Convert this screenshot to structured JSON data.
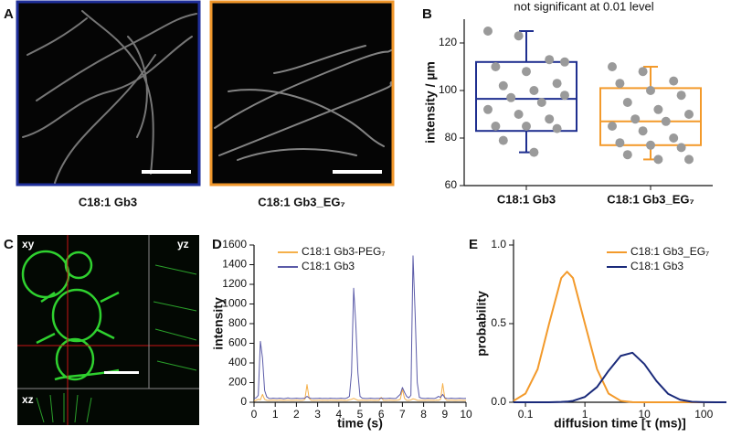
{
  "images": [
    {
      "panel_label": "A",
      "captions": [
        "C18:1 Gb3",
        "C18:1 Gb3_EG₇"
      ]
    },
    {
      "panel_label": "C",
      "view_labels": [
        "xy",
        "yz",
        "xz"
      ]
    }
  ],
  "chart_data": [
    {
      "type": "box",
      "panel_label": "B",
      "title": "not significant at 0.01 level",
      "y_label": "intensity / µm",
      "categories": [
        "C18:1 Gb3",
        "C18:1 Gb3_EG₇"
      ],
      "boxes": [
        {
          "whisker_low": 74,
          "q1": 83,
          "median": 96.5,
          "q3": 112,
          "whisker_high": 125,
          "color": "#1f2f8f",
          "points": [
            125,
            123,
            113,
            110,
            108,
            103,
            102,
            100,
            98,
            97,
            95,
            92,
            90,
            88,
            85,
            85,
            84,
            79,
            74,
            112
          ]
        },
        {
          "whisker_low": 71,
          "q1": 77,
          "median": 87,
          "q3": 101,
          "whisker_high": 110,
          "color": "#f39a2b",
          "points": [
            110,
            108,
            104,
            103,
            100,
            98,
            95,
            92,
            90,
            88,
            87,
            85,
            83,
            80,
            78,
            77,
            76,
            73,
            71,
            71
          ]
        }
      ],
      "point_color": "#9a9a9a",
      "ylim": [
        60,
        130
      ],
      "yticks": [
        60,
        80,
        100,
        120
      ]
    },
    {
      "type": "line",
      "panel_label": "D",
      "x_label": "time (s)",
      "y_label": "intensity",
      "x": [
        0,
        0.1,
        0.2,
        0.3,
        0.4,
        0.5,
        0.6,
        0.7,
        0.8,
        0.9,
        1,
        1.1,
        1.2,
        1.3,
        1.4,
        1.5,
        1.6,
        1.7,
        1.8,
        1.9,
        2,
        2.1,
        2.2,
        2.3,
        2.4,
        2.5,
        2.6,
        2.7,
        2.8,
        2.9,
        3,
        3.1,
        3.2,
        3.3,
        3.4,
        3.5,
        3.6,
        3.7,
        3.8,
        3.9,
        4,
        4.1,
        4.2,
        4.3,
        4.4,
        4.5,
        4.6,
        4.7,
        4.8,
        4.9,
        5,
        5.1,
        5.2,
        5.3,
        5.4,
        5.5,
        5.6,
        5.7,
        5.8,
        5.9,
        6,
        6.1,
        6.2,
        6.3,
        6.4,
        6.5,
        6.6,
        6.7,
        6.8,
        6.9,
        7,
        7.1,
        7.2,
        7.3,
        7.4,
        7.5,
        7.6,
        7.7,
        7.8,
        7.9,
        8,
        8.1,
        8.2,
        8.3,
        8.4,
        8.5,
        8.6,
        8.7,
        8.8,
        8.9,
        9,
        9.1,
        9.2,
        9.3,
        9.4,
        9.5,
        9.6,
        9.7,
        9.8,
        9.9,
        10
      ],
      "series": [
        {
          "name": "C18:1 Gb3-PEG₇",
          "color": "#f5b04a",
          "values": [
            15,
            20,
            30,
            25,
            80,
            30,
            20,
            18,
            20,
            22,
            20,
            18,
            22,
            20,
            18,
            20,
            22,
            20,
            18,
            20,
            22,
            20,
            18,
            20,
            30,
            180,
            40,
            20,
            18,
            20,
            20,
            22,
            18,
            20,
            20,
            18,
            22,
            20,
            20,
            18,
            20,
            22,
            20,
            18,
            20,
            25,
            30,
            40,
            30,
            20,
            20,
            22,
            20,
            18,
            20,
            22,
            20,
            18,
            20,
            20,
            50,
            20,
            18,
            20,
            22,
            20,
            18,
            20,
            22,
            30,
            130,
            40,
            20,
            18,
            25,
            35,
            30,
            20,
            18,
            20,
            20,
            18,
            22,
            20,
            20,
            18,
            22,
            20,
            30,
            190,
            40,
            20,
            18,
            22,
            20,
            18,
            20,
            22,
            20,
            18,
            20
          ]
        },
        {
          "name": "C18:1 Gb3",
          "color": "#5b5ba8",
          "values": [
            40,
            45,
            70,
            620,
            450,
            120,
            55,
            40,
            38,
            42,
            40,
            38,
            42,
            40,
            36,
            40,
            44,
            40,
            38,
            40,
            42,
            40,
            38,
            40,
            42,
            60,
            45,
            40,
            38,
            40,
            40,
            42,
            38,
            40,
            40,
            38,
            42,
            40,
            40,
            38,
            40,
            42,
            40,
            38,
            45,
            60,
            300,
            1160,
            800,
            300,
            60,
            42,
            40,
            38,
            40,
            42,
            40,
            38,
            40,
            40,
            42,
            40,
            38,
            40,
            42,
            40,
            38,
            40,
            60,
            80,
            150,
            100,
            60,
            45,
            70,
            1490,
            900,
            200,
            50,
            42,
            40,
            38,
            42,
            40,
            40,
            38,
            45,
            60,
            50,
            80,
            45,
            40,
            38,
            42,
            40,
            38,
            40,
            42,
            40,
            38,
            40
          ]
        }
      ],
      "xlim": [
        0,
        10
      ],
      "xticks": [
        0,
        1,
        2,
        3,
        4,
        5,
        6,
        7,
        8,
        9,
        10
      ],
      "ylim": [
        0,
        1600
      ],
      "yticks": [
        0,
        200,
        400,
        600,
        800,
        1000,
        1200,
        1400,
        1600
      ],
      "legend": "upper left"
    },
    {
      "type": "line",
      "panel_label": "E",
      "x_label": "diffusion time  [τ (ms)]",
      "y_label": "probability",
      "xscale": "log",
      "x": [
        0.063,
        0.1,
        0.16,
        0.25,
        0.4,
        0.5,
        0.63,
        1,
        1.6,
        2.5,
        4,
        6.3,
        10,
        16,
        25,
        40,
        63,
        100,
        160,
        240
      ],
      "series": [
        {
          "name": "C18:1 Gb3_EG₇",
          "color": "#f39a2b",
          "values": [
            0.009,
            0.055,
            0.21,
            0.5,
            0.79,
            0.83,
            0.79,
            0.5,
            0.21,
            0.055,
            0.009,
            0.001,
            0,
            0,
            0,
            0,
            0,
            0,
            0,
            0
          ]
        },
        {
          "name": "C18:1 Gb3",
          "color": "#1a2a7a",
          "values": [
            0,
            0,
            0,
            0,
            0.002,
            0.004,
            0.009,
            0.034,
            0.097,
            0.2,
            0.295,
            0.315,
            0.243,
            0.135,
            0.054,
            0.016,
            0.003,
            0.001,
            0,
            0
          ]
        }
      ],
      "xlim": [
        0.063,
        240
      ],
      "xticks": [
        0.1,
        1,
        10,
        100
      ],
      "ylim": [
        0,
        1
      ],
      "yticks": [
        {
          "value": 0,
          "label": "0.0"
        },
        {
          "value": 0.5,
          "label": "0.5"
        },
        {
          "value": 1,
          "label": "1.0"
        }
      ],
      "legend": "upper right"
    }
  ]
}
